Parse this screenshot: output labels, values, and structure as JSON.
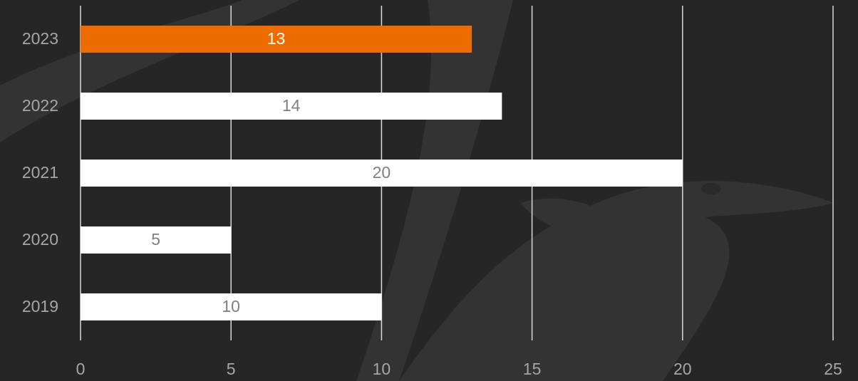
{
  "chart_data": {
    "type": "bar",
    "orientation": "horizontal",
    "categories": [
      "2023",
      "2022",
      "2021",
      "2020",
      "2019"
    ],
    "values": [
      13,
      14,
      20,
      5,
      10
    ],
    "colors": [
      "#ec6c00",
      "#ffffff",
      "#ffffff",
      "#ffffff",
      "#ffffff"
    ],
    "xlim": [
      0,
      25
    ],
    "xticks": [
      0,
      5,
      10,
      15,
      20,
      25
    ],
    "grid": true
  }
}
